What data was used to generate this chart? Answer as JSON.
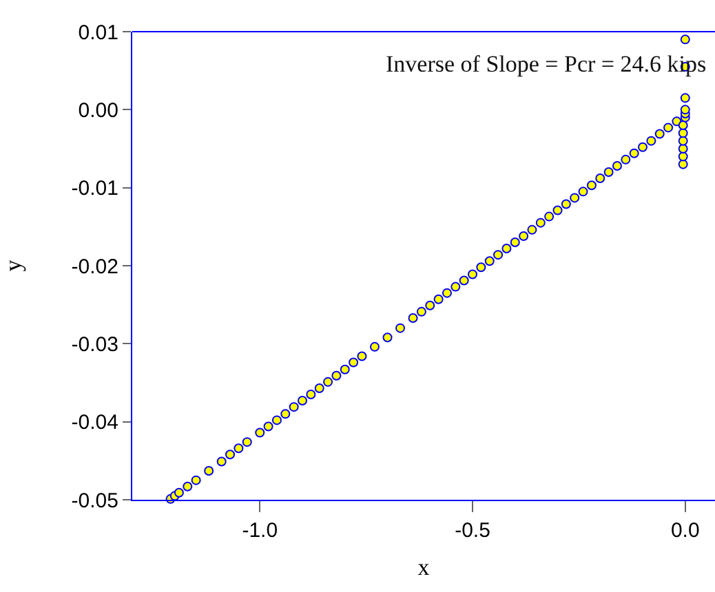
{
  "chart_data": {
    "type": "scatter",
    "xlabel": "x",
    "ylabel": "y",
    "annotations": [
      "Inverse of Slope = Pcr = 24.6 kips"
    ],
    "marker": "circle",
    "grid": false,
    "xlim": [
      -1.3,
      0.07
    ],
    "xticks": [
      {
        "value": -1,
        "label": "-1.0"
      },
      -0.5,
      {
        "value": 0,
        "label": "0.0"
      }
    ],
    "ylim": [
      -0.05,
      0.01
    ],
    "yticks": [
      -0.05,
      -0.04,
      -0.03,
      -0.02,
      -0.01,
      {
        "value": 0,
        "label": "0.00"
      },
      0.01
    ],
    "series": [
      {
        "color": "#ffff00",
        "x": [
          -1.21,
          -1.2,
          -1.19,
          -1.17,
          -1.15,
          -1.12,
          -1.09,
          -1.07,
          -1.05,
          -1.03,
          -1.0,
          -0.98,
          -0.96,
          -0.94,
          -0.92,
          -0.9,
          -0.88,
          -0.86,
          -0.84,
          -0.82,
          -0.8,
          -0.78,
          -0.76,
          -0.73,
          -0.7,
          -0.67,
          -0.64,
          -0.62,
          -0.6,
          -0.58,
          -0.56,
          -0.54,
          -0.52,
          -0.5,
          -0.48,
          -0.46,
          -0.44,
          -0.42,
          -0.4,
          -0.38,
          -0.36,
          -0.34,
          -0.32,
          -0.3,
          -0.28,
          -0.26,
          -0.24,
          -0.22,
          -0.2,
          -0.18,
          -0.16,
          -0.14,
          -0.12,
          -0.1,
          -0.08,
          -0.06,
          -0.04,
          -0.02,
          -0.005,
          -0.005,
          -0.005,
          -0.005,
          -0.005,
          -0.005,
          0,
          0,
          0,
          0,
          0,
          0
        ],
        "values": [
          -0.0499,
          -0.0495,
          -0.0491,
          -0.0483,
          -0.0475,
          -0.0463,
          -0.0451,
          -0.0442,
          -0.0434,
          -0.0426,
          -0.0414,
          -0.0406,
          -0.0398,
          -0.039,
          -0.0381,
          -0.0373,
          -0.0365,
          -0.0357,
          -0.0349,
          -0.0341,
          -0.0333,
          -0.0324,
          -0.0316,
          -0.0304,
          -0.0292,
          -0.028,
          -0.0267,
          -0.0259,
          -0.0251,
          -0.0243,
          -0.0235,
          -0.0227,
          -0.0219,
          -0.0211,
          -0.0202,
          -0.0194,
          -0.0186,
          -0.0178,
          -0.017,
          -0.0162,
          -0.0154,
          -0.0145,
          -0.0137,
          -0.0129,
          -0.0121,
          -0.0113,
          -0.0105,
          -0.0097,
          -0.0088,
          -0.008,
          -0.0072,
          -0.0064,
          -0.0056,
          -0.0048,
          -0.004,
          -0.0031,
          -0.0023,
          -0.0015,
          -0.007,
          -0.006,
          -0.005,
          -0.004,
          -0.003,
          -0.002,
          -0.001,
          -0.0005,
          0,
          0.0015,
          0.0055,
          0.009
        ]
      }
    ]
  }
}
